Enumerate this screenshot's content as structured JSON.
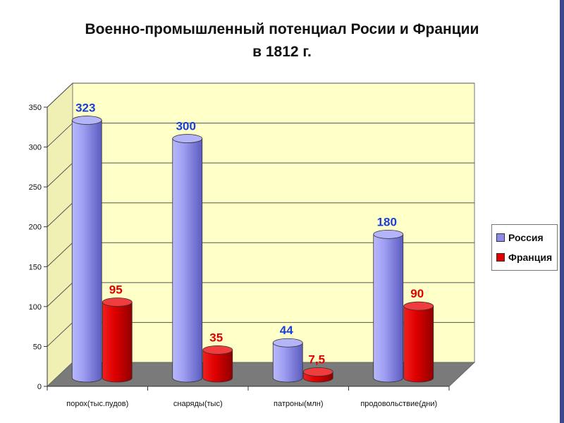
{
  "title_line1": "Военно-промышленный потенциал Росии и Франции",
  "title_line2": "в 1812 г.",
  "legend": [
    {
      "name": "Россия",
      "color": "#8c8ce8"
    },
    {
      "name": "Франция",
      "color": "#e00000"
    }
  ],
  "chart_data": {
    "type": "bar",
    "title": "Военно-промышленный потенциал Росии и Франции в 1812 г.",
    "categories": [
      "порох(тыс.пудов)",
      "снаряды(тыс)",
      "патроны(млн)",
      "продовольствие(дни)"
    ],
    "series": [
      {
        "name": "Россия",
        "values": [
          323,
          300,
          44,
          180
        ],
        "labels": [
          "323",
          "300",
          "44",
          "180"
        ],
        "color": "#8c8ce8",
        "label_color": "#1a3fd6"
      },
      {
        "name": "Франция",
        "values": [
          95,
          35,
          7.5,
          90
        ],
        "labels": [
          "95",
          "35",
          "7,5",
          "90"
        ],
        "color": "#e00000",
        "label_color": "#e00000"
      }
    ],
    "yticks": [
      "0",
      "50",
      "100",
      "150",
      "200",
      "250",
      "300",
      "350"
    ],
    "ylim": [
      0,
      350
    ],
    "grid": true,
    "legend_position": "right"
  }
}
